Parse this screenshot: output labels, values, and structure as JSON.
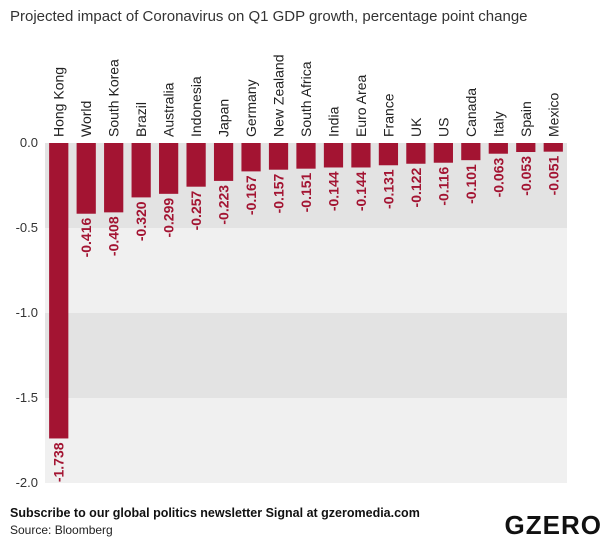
{
  "title": "Projected impact of Coronavirus on Q1 GDP growth, percentage point change",
  "footer": {
    "subscribe": "Subscribe to our global politics newsletter Signal at gzeromedia.com",
    "source": "Source: Bloomberg"
  },
  "logo": "GZERO",
  "colors": {
    "bar": "#a31432",
    "label": "#a31432",
    "band_dark": "#e3e3e3",
    "band_light": "#f0f0f0"
  },
  "chart_data": {
    "type": "bar",
    "title": "Projected impact of Coronavirus on Q1 GDP growth, percentage point change",
    "xlabel": "",
    "ylabel": "",
    "ylim": [
      -2.0,
      0.0
    ],
    "yticks": [
      0.0,
      -0.5,
      -1.0,
      -1.5,
      -2.0
    ],
    "ytick_labels": [
      "0.0",
      "-0.5",
      "-1.0",
      "-1.5",
      "-2.0"
    ],
    "categories": [
      "Hong Kong",
      "World",
      "South Korea",
      "Brazil",
      "Australia",
      "Indonesia",
      "Japan",
      "Germany",
      "New Zealand",
      "South Africa",
      "India",
      "Euro Area",
      "France",
      "UK",
      "US",
      "Canada",
      "Italy",
      "Spain",
      "Mexico"
    ],
    "values": [
      -1.738,
      -0.416,
      -0.408,
      -0.32,
      -0.299,
      -0.257,
      -0.223,
      -0.167,
      -0.157,
      -0.151,
      -0.144,
      -0.144,
      -0.131,
      -0.122,
      -0.116,
      -0.101,
      -0.063,
      -0.053,
      -0.051
    ],
    "value_labels": [
      "-1.738",
      "-0.416",
      "-0.408",
      "-0.320",
      "-0.299",
      "-0.257",
      "-0.223",
      "-0.167",
      "-0.157",
      "-0.151",
      "-0.144",
      "-0.144",
      "-0.131",
      "-0.122",
      "-0.116",
      "-0.101",
      "-0.063",
      "-0.053",
      "-0.051"
    ]
  }
}
